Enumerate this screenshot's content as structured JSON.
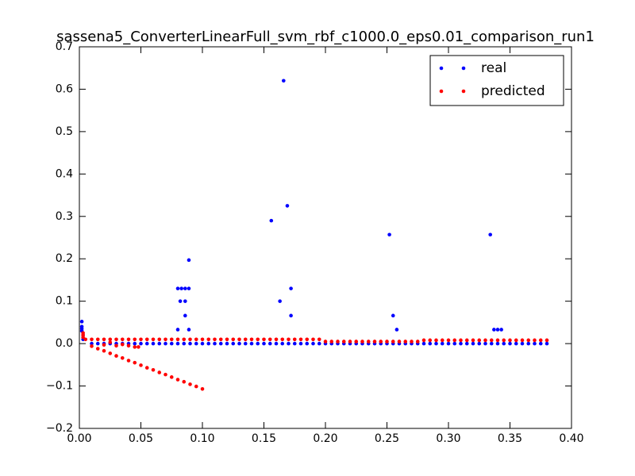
{
  "chart_data": {
    "type": "scatter",
    "title": "sassena5_ConverterLinearFull_svm_rbf_c1000.0_eps0.01_comparison_run1",
    "xlim": [
      0,
      0.4
    ],
    "ylim": [
      -0.2,
      0.7
    ],
    "xticks": [
      {
        "value": 0,
        "label": "0.00"
      },
      0.05,
      {
        "value": 0.1,
        "label": "0.10"
      },
      0.15,
      {
        "value": 0.2,
        "label": "0.20"
      },
      0.25,
      {
        "value": 0.3,
        "label": "0.30"
      },
      0.35,
      {
        "value": 0.4,
        "label": "0.40"
      }
    ],
    "yticks": [
      {
        "value": -0.2,
        "label": "−0.2"
      },
      {
        "value": -0.1,
        "label": "−0.1"
      },
      {
        "value": 0,
        "label": "0.0"
      },
      0.1,
      0.2,
      0.3,
      0.4,
      0.5,
      0.6,
      0.7
    ],
    "grid": false,
    "legend": "upper right",
    "series": [
      {
        "name": "real",
        "color": "#0000ff",
        "x": [
          0.002,
          0.002,
          0.002,
          0.002,
          0.003,
          0.003,
          0.01,
          0.015,
          0.02,
          0.025,
          0.03,
          0.035,
          0.04,
          0.045,
          0.05,
          0.055,
          0.06,
          0.065,
          0.07,
          0.075,
          0.08,
          0.085,
          0.09,
          0.095,
          0.1,
          0.105,
          0.11,
          0.115,
          0.12,
          0.125,
          0.13,
          0.135,
          0.14,
          0.145,
          0.15,
          0.155,
          0.16,
          0.165,
          0.17,
          0.175,
          0.18,
          0.185,
          0.19,
          0.195,
          0.2,
          0.205,
          0.21,
          0.215,
          0.22,
          0.225,
          0.23,
          0.235,
          0.24,
          0.245,
          0.25,
          0.255,
          0.26,
          0.265,
          0.27,
          0.275,
          0.28,
          0.285,
          0.29,
          0.295,
          0.3,
          0.305,
          0.31,
          0.315,
          0.32,
          0.325,
          0.33,
          0.335,
          0.34,
          0.345,
          0.35,
          0.355,
          0.36,
          0.365,
          0.37,
          0.375,
          0.38,
          0.08,
          0.083,
          0.086,
          0.089,
          0.082,
          0.086,
          0.08,
          0.086,
          0.089,
          0.089,
          0.156,
          0.163,
          0.166,
          0.169,
          0.172,
          0.172,
          0.252,
          0.255,
          0.258,
          0.334,
          0.337,
          0.34,
          0.343
        ],
        "values": [
          0.052,
          0.04,
          0.035,
          0.03,
          0.02,
          0.01,
          0,
          0,
          0,
          0,
          0,
          0,
          0,
          0,
          0,
          0,
          0,
          0,
          0,
          0,
          0,
          0,
          0,
          0,
          0,
          0,
          0,
          0,
          0,
          0,
          0,
          0,
          0,
          0,
          0,
          0,
          0,
          0,
          0,
          0,
          0,
          0,
          0,
          0,
          0,
          0,
          0,
          0,
          0,
          0,
          0,
          0,
          0,
          0,
          0,
          0,
          0,
          0,
          0,
          0,
          0,
          0,
          0,
          0,
          0,
          0,
          0,
          0,
          0,
          0,
          0,
          0,
          0,
          0,
          0,
          0,
          0,
          0,
          0,
          0,
          0,
          0.13,
          0.13,
          0.13,
          0.13,
          0.1,
          0.1,
          0.033,
          0.066,
          0.197,
          0.033,
          0.29,
          0.1,
          0.62,
          0.325,
          0.13,
          0.066,
          0.257,
          0.066,
          0.033,
          0.257,
          0.033,
          0.033,
          0.033
        ]
      },
      {
        "name": "predicted",
        "color": "#ff0000",
        "x": [
          0.005,
          0.01,
          0.015,
          0.02,
          0.025,
          0.03,
          0.035,
          0.04,
          0.045,
          0.05,
          0.055,
          0.06,
          0.065,
          0.07,
          0.075,
          0.08,
          0.085,
          0.09,
          0.095,
          0.1,
          0.105,
          0.11,
          0.115,
          0.12,
          0.125,
          0.13,
          0.135,
          0.14,
          0.145,
          0.15,
          0.155,
          0.16,
          0.165,
          0.17,
          0.175,
          0.18,
          0.185,
          0.19,
          0.195,
          0.2,
          0.205,
          0.21,
          0.215,
          0.22,
          0.225,
          0.23,
          0.235,
          0.24,
          0.245,
          0.25,
          0.255,
          0.26,
          0.265,
          0.27,
          0.275,
          0.28,
          0.285,
          0.29,
          0.295,
          0.3,
          0.305,
          0.31,
          0.315,
          0.32,
          0.325,
          0.33,
          0.335,
          0.34,
          0.345,
          0.35,
          0.355,
          0.36,
          0.365,
          0.37,
          0.375,
          0.38,
          0.01,
          0.015,
          0.02,
          0.025,
          0.03,
          0.035,
          0.04,
          0.045,
          0.05,
          0.055,
          0.06,
          0.065,
          0.07,
          0.075,
          0.08,
          0.085,
          0.09,
          0.095,
          0.1,
          0.02,
          0.025,
          0.03,
          0.035,
          0.04,
          0.045,
          0.048,
          0.003,
          0.003,
          0.003
        ],
        "values": [
          0.01,
          0.01,
          0.01,
          0.01,
          0.01,
          0.01,
          0.01,
          0.01,
          0.01,
          0.01,
          0.01,
          0.01,
          0.01,
          0.01,
          0.01,
          0.01,
          0.01,
          0.01,
          0.01,
          0.01,
          0.01,
          0.01,
          0.01,
          0.01,
          0.01,
          0.01,
          0.01,
          0.01,
          0.01,
          0.01,
          0.01,
          0.01,
          0.01,
          0.01,
          0.01,
          0.01,
          0.01,
          0.01,
          0.01,
          0.005,
          0.005,
          0.005,
          0.005,
          0.005,
          0.005,
          0.005,
          0.005,
          0.005,
          0.005,
          0.005,
          0.005,
          0.005,
          0.005,
          0.005,
          0.005,
          0.008,
          0.008,
          0.008,
          0.008,
          0.008,
          0.008,
          0.008,
          0.008,
          0.008,
          0.008,
          0.008,
          0.008,
          0.008,
          0.008,
          0.008,
          0.008,
          0.008,
          0.008,
          0.008,
          0.008,
          0.008,
          -0.006,
          -0.012,
          -0.017,
          -0.023,
          -0.029,
          -0.034,
          -0.04,
          -0.045,
          -0.051,
          -0.057,
          -0.062,
          -0.068,
          -0.073,
          -0.079,
          -0.085,
          -0.09,
          -0.096,
          -0.101,
          -0.107,
          -0.003,
          0.003,
          -0.005,
          -0.002,
          -0.005,
          -0.008,
          -0.008,
          0.02,
          0.015,
          0.025
        ]
      }
    ]
  }
}
